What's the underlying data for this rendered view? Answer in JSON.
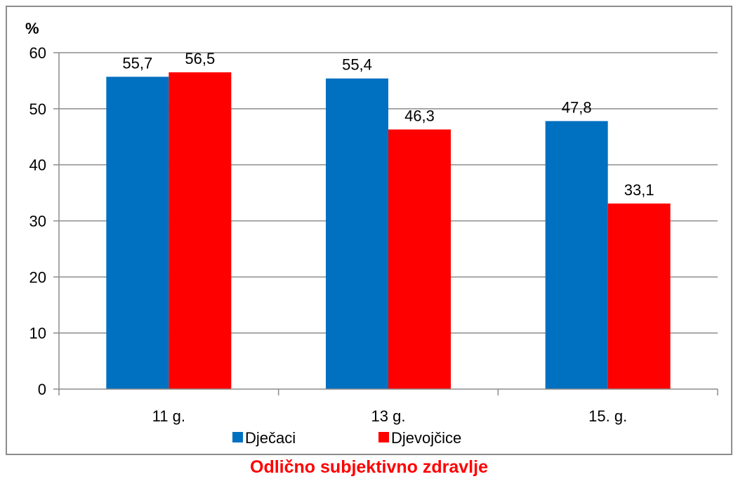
{
  "chart_data": {
    "type": "bar",
    "title": "Odlično subjektivno zdravlje",
    "ylabel": "%",
    "xlabel": "",
    "categories": [
      "11 g.",
      "13 g.",
      "15. g."
    ],
    "series": [
      {
        "name": "Dječaci",
        "values": [
          55.7,
          55.4,
          47.8
        ],
        "labels": [
          "55,7",
          "55,4",
          "47,8"
        ],
        "color": "#0070c0"
      },
      {
        "name": "Djevojčice",
        "values": [
          56.5,
          46.3,
          33.1
        ],
        "labels": [
          "56,5",
          "46,3",
          "33,1"
        ],
        "color": "#ff0000"
      }
    ],
    "ylim": [
      0,
      60
    ],
    "yticks": [
      0,
      10,
      20,
      30,
      40,
      50,
      60
    ],
    "grid": true,
    "legend": "bottom"
  }
}
